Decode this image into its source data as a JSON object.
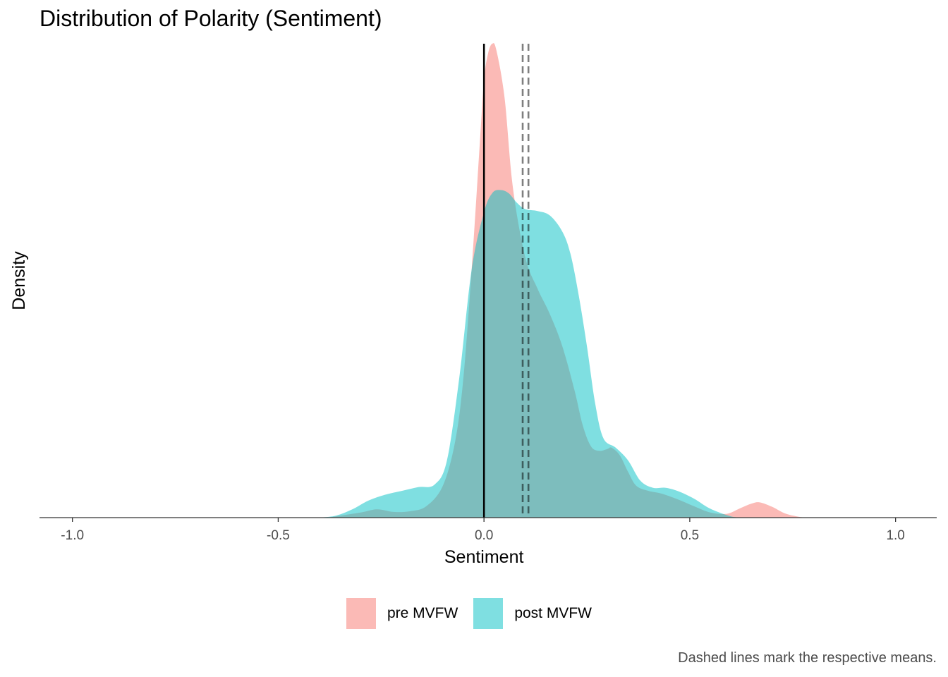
{
  "chart_data": {
    "type": "area",
    "title": "Distribution of Polarity (Sentiment)",
    "xlabel": "Sentiment",
    "ylabel": "Density",
    "xlim": [
      -1.08,
      1.1
    ],
    "ylim": [
      0,
      7.45
    ],
    "x_ticks": [
      "-1.0",
      "-0.5",
      "0.0",
      "0.5",
      "1.0"
    ],
    "x_tick_values": [
      -1.0,
      -0.5,
      0.0,
      0.5,
      1.0
    ],
    "grid": false,
    "legend_position": "bottom",
    "series": [
      {
        "name": "pre MVFW",
        "color": "#f8766d",
        "opacity": 0.5,
        "mean": 0.094,
        "x": [
          -0.38,
          -0.3,
          -0.26,
          -0.22,
          -0.18,
          -0.14,
          -0.1,
          -0.07,
          -0.05,
          -0.03,
          -0.01,
          0.0,
          0.01,
          0.02,
          0.03,
          0.05,
          0.07,
          0.1,
          0.13,
          0.16,
          0.19,
          0.22,
          0.24,
          0.26,
          0.28,
          0.3,
          0.31,
          0.33,
          0.35,
          0.37,
          0.4,
          0.43,
          0.47,
          0.51,
          0.55,
          0.59,
          0.62,
          0.65,
          0.67,
          0.7,
          0.73,
          0.76,
          0.78
        ],
        "values": [
          0.0,
          0.08,
          0.13,
          0.09,
          0.1,
          0.18,
          0.5,
          1.2,
          2.2,
          3.9,
          5.9,
          6.88,
          7.3,
          7.45,
          7.35,
          6.6,
          5.2,
          4.1,
          3.6,
          3.2,
          2.7,
          2.0,
          1.45,
          1.12,
          1.05,
          1.08,
          1.1,
          0.98,
          0.72,
          0.5,
          0.42,
          0.38,
          0.29,
          0.18,
          0.08,
          0.06,
          0.14,
          0.22,
          0.24,
          0.17,
          0.07,
          0.02,
          0.0
        ]
      },
      {
        "name": "post MVFW",
        "color": "#00bfc4",
        "opacity": 0.5,
        "mean": 0.108,
        "x": [
          -0.4,
          -0.36,
          -0.32,
          -0.28,
          -0.24,
          -0.2,
          -0.16,
          -0.12,
          -0.09,
          -0.06,
          -0.03,
          0.0,
          0.02,
          0.04,
          0.06,
          0.08,
          0.1,
          0.13,
          0.16,
          0.19,
          0.21,
          0.23,
          0.25,
          0.27,
          0.29,
          0.32,
          0.35,
          0.38,
          0.41,
          0.44,
          0.47,
          0.51,
          0.55,
          0.6,
          0.63
        ],
        "values": [
          0.0,
          0.03,
          0.13,
          0.27,
          0.36,
          0.42,
          0.48,
          0.52,
          0.9,
          2.2,
          3.9,
          4.8,
          5.1,
          5.15,
          5.1,
          4.95,
          4.85,
          4.82,
          4.75,
          4.5,
          4.15,
          3.5,
          2.7,
          1.8,
          1.25,
          1.1,
          0.9,
          0.58,
          0.47,
          0.47,
          0.42,
          0.3,
          0.14,
          0.02,
          0.0
        ]
      }
    ],
    "zero_line": 0.0
  },
  "legend": {
    "items": [
      {
        "label": "pre MVFW",
        "color": "#f8766d"
      },
      {
        "label": "post MVFW",
        "color": "#00bfc4"
      }
    ]
  },
  "caption": "Dashed lines mark the respective means."
}
